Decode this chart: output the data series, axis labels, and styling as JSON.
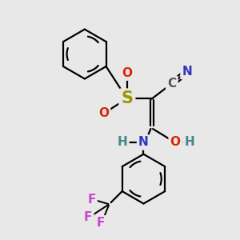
{
  "bg_color": "#e8e8e8",
  "bond_color": "#000000",
  "bond_lw": 1.6,
  "atom_colors": {
    "C": "#555555",
    "N_blue": "#3333bb",
    "N_cyan": "#4488aa",
    "O": "#dd2200",
    "S": "#999900",
    "H": "#448888",
    "F": "#cc44cc"
  },
  "figsize": [
    3.0,
    3.0
  ],
  "dpi": 100
}
